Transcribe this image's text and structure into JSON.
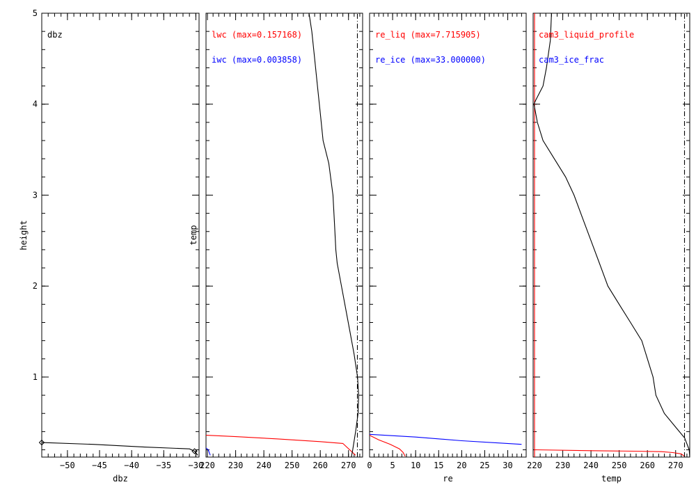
{
  "colors": {
    "axis": "#000000",
    "black": "#000000",
    "red": "#ff0000",
    "blue": "#0000ff",
    "background": "#ffffff"
  },
  "chart_data": [
    {
      "type": "line",
      "panel": "dbz",
      "xlabel": "dbz",
      "ylabel": "height",
      "xlim": [
        -54,
        -29.5
      ],
      "ylim": [
        0.12,
        5.0
      ],
      "x_ticks": [
        -50,
        -45,
        -40,
        -35,
        -30
      ],
      "x_tick_labels": [
        "−50",
        "−45",
        "−40",
        "−35",
        "−30"
      ],
      "y_ticks": [
        1,
        2,
        3,
        4,
        5
      ],
      "legend": [
        "dbz"
      ],
      "series": [
        {
          "color": "#000000",
          "points": [
            [
              -54,
              0.28
            ],
            [
              -46,
              0.26
            ],
            [
              -38,
              0.23
            ],
            [
              -31,
              0.21
            ],
            [
              -30.2,
              0.185
            ],
            [
              -29.7,
              0.14
            ]
          ],
          "markers": [
            [
              -54,
              0.28
            ],
            [
              -30.2,
              0.185
            ]
          ]
        }
      ]
    },
    {
      "type": "line",
      "panel": "lwc_iwc",
      "xlabel": "",
      "ylabel": "temp",
      "xlim": [
        219.5,
        275
      ],
      "ylim": [
        0.12,
        5.0
      ],
      "x_ticks": [
        220,
        230,
        240,
        250,
        260,
        270
      ],
      "x_tick_labels": [
        "220",
        "230",
        "240",
        "250",
        "260",
        "270"
      ],
      "y_ticks": [
        1,
        2,
        3,
        4,
        5
      ],
      "legend": [
        "lwc (max=0.157168)",
        "iwc (max=0.003858)"
      ],
      "series": [
        {
          "name": "lwc (max=0.157168)",
          "color": "#ff0000",
          "points": [
            [
              219.5,
              0.36
            ],
            [
              230,
              0.345
            ],
            [
              245,
              0.32
            ],
            [
              260,
              0.29
            ],
            [
              268,
              0.27
            ],
            [
              272.5,
              0.14
            ]
          ]
        },
        {
          "name": "iwc (max=0.003858)",
          "color": "#0000ff",
          "points": [
            [
              219.5,
              0.22
            ],
            [
              220.3,
              0.2
            ],
            [
              221,
              0.14
            ]
          ]
        },
        {
          "name": "temp",
          "color": "#000000",
          "points": [
            [
              256,
              5.0
            ],
            [
              257,
              4.8
            ],
            [
              258,
              4.5
            ],
            [
              259,
              4.2
            ],
            [
              260,
              3.9
            ],
            [
              261,
              3.6
            ],
            [
              263,
              3.35
            ],
            [
              264.5,
              3.0
            ],
            [
              265,
              2.7
            ],
            [
              265.5,
              2.4
            ],
            [
              266,
              2.25
            ],
            [
              267.5,
              2.0
            ],
            [
              269,
              1.75
            ],
            [
              270.5,
              1.5
            ],
            [
              272,
              1.25
            ],
            [
              273.2,
              1.0
            ],
            [
              273.6,
              0.8
            ],
            [
              273.4,
              0.6
            ],
            [
              272.5,
              0.4
            ],
            [
              271.5,
              0.2
            ],
            [
              271,
              0.12
            ]
          ]
        },
        {
          "name": "freezing line",
          "color": "#000000",
          "dash": "dashdot",
          "points": [
            [
              273.15,
              0.12
            ],
            [
              273.15,
              5.0
            ]
          ]
        }
      ]
    },
    {
      "type": "line",
      "panel": "re",
      "xlabel": "re",
      "ylabel": "",
      "xlim": [
        0,
        34
      ],
      "ylim": [
        0.12,
        5.0
      ],
      "x_ticks": [
        0,
        5,
        10,
        15,
        20,
        25,
        30
      ],
      "x_tick_labels": [
        "0",
        "5",
        "10",
        "15",
        "20",
        "25",
        "30"
      ],
      "y_ticks": [
        1,
        2,
        3,
        4,
        5
      ],
      "legend": [
        "re_liq (max=7.715905)",
        "re_ice (max=33.000000)"
      ],
      "series": [
        {
          "name": "re_liq (max=7.715905)",
          "color": "#ff0000",
          "points": [
            [
              0,
              0.36
            ],
            [
              2,
              0.31
            ],
            [
              4.5,
              0.26
            ],
            [
              6.5,
              0.21
            ],
            [
              7.3,
              0.17
            ],
            [
              7.7,
              0.13
            ]
          ]
        },
        {
          "name": "re_ice (max=33.000000)",
          "color": "#0000ff",
          "points": [
            [
              0,
              0.37
            ],
            [
              10,
              0.34
            ],
            [
              20,
              0.3
            ],
            [
              33,
              0.26
            ]
          ]
        }
      ]
    },
    {
      "type": "line",
      "panel": "cam3",
      "xlabel": "temp",
      "ylabel": "",
      "xlim": [
        219.5,
        275
      ],
      "ylim": [
        0.12,
        5.0
      ],
      "x_ticks": [
        220,
        230,
        240,
        250,
        260,
        270
      ],
      "x_tick_labels": [
        "220",
        "230",
        "240",
        "250",
        "260",
        "270"
      ],
      "y_ticks": [
        1,
        2,
        3,
        4,
        5
      ],
      "legend": [
        "cam3_liquid_profile",
        "cam3_ice_frac"
      ],
      "series": [
        {
          "name": "cam3_liquid_profile",
          "color": "#ff0000",
          "points": [
            [
              220,
              0.2
            ],
            [
              240,
              0.19
            ],
            [
              255,
              0.185
            ],
            [
              265,
              0.18
            ],
            [
              269,
              0.17
            ],
            [
              272,
              0.155
            ],
            [
              273.1,
              0.13
            ]
          ]
        },
        {
          "name": "cam3_ice_frac",
          "color": "#ff0000",
          "points": [
            [
              220,
              0.12
            ],
            [
              220,
              5.0
            ]
          ]
        },
        {
          "name": "temp",
          "color": "#000000",
          "points": [
            [
              226,
              5.0
            ],
            [
              225.6,
              4.7
            ],
            [
              224.2,
              4.4
            ],
            [
              223,
              4.2
            ],
            [
              220.5,
              4.05
            ],
            [
              219.8,
              4.0
            ],
            [
              221,
              3.8
            ],
            [
              223,
              3.6
            ],
            [
              227,
              3.4
            ],
            [
              231,
              3.2
            ],
            [
              234,
              3.0
            ],
            [
              237,
              2.75
            ],
            [
              240,
              2.5
            ],
            [
              243,
              2.25
            ],
            [
              246,
              2.0
            ],
            [
              250,
              1.8
            ],
            [
              254,
              1.6
            ],
            [
              258,
              1.4
            ],
            [
              260,
              1.2
            ],
            [
              262,
              1.0
            ],
            [
              263,
              0.8
            ],
            [
              266,
              0.6
            ],
            [
              270,
              0.45
            ],
            [
              273.2,
              0.33
            ],
            [
              274.8,
              0.2
            ],
            [
              275,
              0.12
            ]
          ]
        },
        {
          "name": "freezing line",
          "color": "#000000",
          "dash": "dashdot",
          "points": [
            [
              273.15,
              0.12
            ],
            [
              273.15,
              5.0
            ]
          ]
        }
      ]
    }
  ]
}
